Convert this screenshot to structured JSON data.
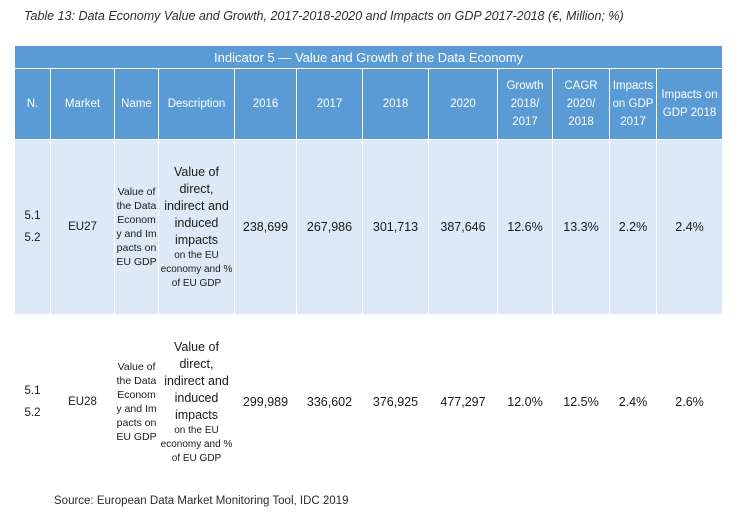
{
  "caption": "Table 13: Data Economy Value and Growth, 2017-2018-2020 and Impacts on GDP 2017-2018 (€, Million; %)",
  "table": {
    "band_title": "Indicator 5 — Value and Growth of the Data Economy",
    "headers": {
      "n": "N.",
      "market": "Market",
      "name": "Name",
      "description": "Description",
      "y2016": "2016",
      "y2017": "2017",
      "y2018": "2018",
      "y2020": "2020",
      "growth": "Growth 2018/ 2017",
      "cagr": "CAGR 2020/ 2018",
      "impacts2017": "Impacts on GDP 2017",
      "impacts2018": "Impacts on GDP 2018"
    },
    "rows": [
      {
        "n": "5.1 5.2",
        "market": "EU27",
        "name": "Value of the Data Economy and Impacts on EU GDP",
        "desc_main": "Value of direct, indirect and induced impacts",
        "desc_small": "on the EU economy and % of EU GDP",
        "y2016": "238,699",
        "y2017": "267,986",
        "y2018": "301,713",
        "y2020": "387,646",
        "growth": "12.6%",
        "cagr": "13.3%",
        "impacts2017": "2.2%",
        "impacts2018": "2.4%"
      },
      {
        "n": "5.1 5.2",
        "market": "EU28",
        "name": "Value of the Data Economy and Impacts on EU GDP",
        "desc_main": "Value of direct, indirect and induced impacts",
        "desc_small": "on the EU economy and % of EU GDP",
        "y2016": "299,989",
        "y2017": "336,602",
        "y2018": "376,925",
        "y2020": "477,297",
        "growth": "12.0%",
        "cagr": "12.5%",
        "impacts2017": "2.4%",
        "impacts2018": "2.6%"
      }
    ]
  },
  "source": "Source: European Data Market Monitoring Tool, IDC 2019",
  "colors": {
    "header_blue": "#5b9bd5",
    "row_tint": "#dde9f6"
  }
}
